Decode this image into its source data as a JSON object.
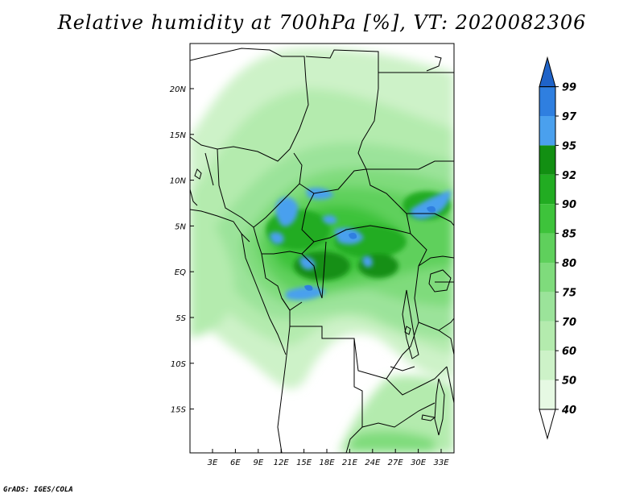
{
  "title": "Relative humidity at 700hPa [%], VT: 2020082306",
  "credit": "GrADS: IGES/COLA",
  "map": {
    "lat_ticks": [
      "20N",
      "15N",
      "10N",
      "5N",
      "EQ",
      "5S",
      "10S",
      "15S"
    ],
    "lon_ticks": [
      "3E",
      "6E",
      "9E",
      "12E",
      "15E",
      "18E",
      "21E",
      "24E",
      "27E",
      "30E",
      "33E"
    ]
  },
  "colorbar": {
    "levels": [
      "40",
      "50",
      "60",
      "70",
      "75",
      "80",
      "85",
      "90",
      "92",
      "95",
      "97",
      "99"
    ],
    "colors": [
      "#ffffff",
      "#e6f9e3",
      "#cdf2c8",
      "#b4ebae",
      "#9be39a",
      "#7fdb7c",
      "#5fd05c",
      "#3ec33b",
      "#22ac22",
      "#128f12",
      "#4aa0ee",
      "#2f7fe0",
      "#1f63c8"
    ]
  }
}
